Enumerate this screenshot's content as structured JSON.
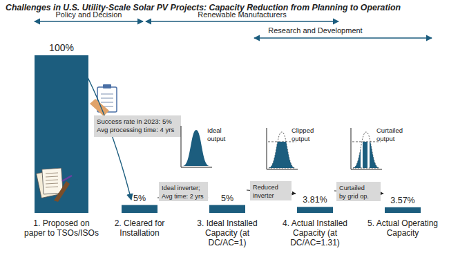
{
  "chart_data": {
    "type": "bar",
    "title": "Challenges in U.S. Utility-Scale Solar PV Projects: Capacity Reduction from Planning to Operation",
    "categories": [
      "1. Proposed on\npaper to TSOs/ISOs",
      "2. Cleared for\nInstallation",
      "3. Ideal Installed\nCapacity (at\nDC/AC=1)",
      "4. Actual Installed\nCapacity (at\nDC/AC=1.31)",
      "5. Actual Operating\nCapacity"
    ],
    "values": [
      100,
      5,
      5,
      3.81,
      3.57
    ],
    "value_labels": [
      "100%",
      "5%",
      "5%",
      "3.81%",
      "3.57%"
    ],
    "color": "#1c5d7e",
    "ylim": [
      0,
      100
    ],
    "tick_labels": false,
    "data_labels": true,
    "phases": [
      {
        "label": "Policy and Decision"
      },
      {
        "label": "Renewable Manufacturers"
      },
      {
        "label": "Research and Development"
      }
    ],
    "notes": [
      {
        "lines": [
          "Success rate in 2023: 5%",
          "Avg processing time: 4 yrs"
        ]
      },
      {
        "lines": [
          "Ideal inverter;",
          "Avg time: 2 yrs"
        ]
      },
      {
        "lines": [
          "Reduced",
          "inverter"
        ]
      },
      {
        "lines": [
          "Curtailed",
          "by grid op."
        ]
      }
    ],
    "output_icons": [
      {
        "lines": [
          "Ideal",
          "output"
        ]
      },
      {
        "lines": [
          "Clipped",
          "output"
        ]
      },
      {
        "lines": [
          "Curtailed",
          "output"
        ]
      }
    ]
  }
}
